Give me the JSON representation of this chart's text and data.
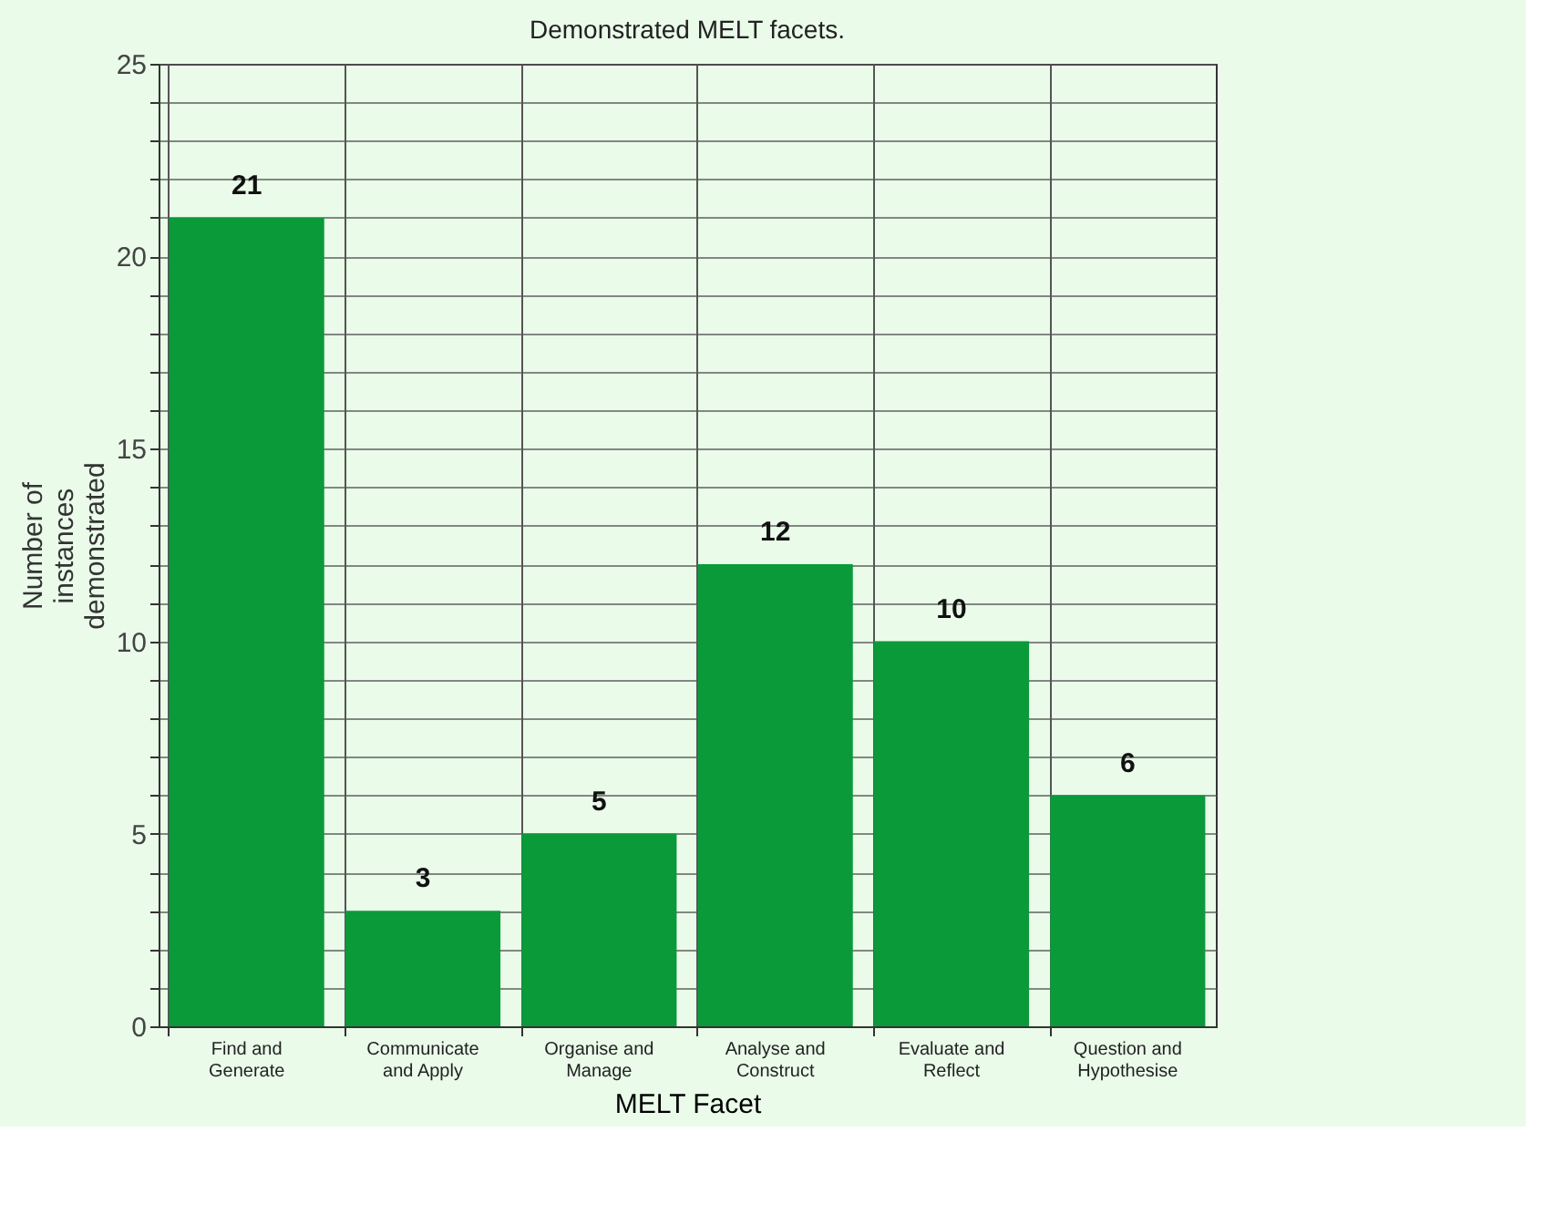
{
  "chart_data": {
    "type": "bar",
    "title": "Demonstrated MELT facets.",
    "xlabel": "MELT Facet",
    "ylabel": "Number of instances demonstrated",
    "categories": [
      "Find and Generate",
      "Communicate and Apply",
      "Organise and Manage",
      "Analyse and Construct",
      "Evaluate and Reflect",
      "Question and Hypothesise"
    ],
    "values": [
      21,
      3,
      5,
      12,
      10,
      6
    ],
    "color": "#0a9a3a",
    "data_labels": true,
    "ylim": [
      0,
      25
    ],
    "yticks": [
      0,
      {
        "value": 1,
        "label": null
      },
      {
        "value": 2,
        "label": null
      },
      {
        "value": 3,
        "label": null
      },
      {
        "value": 4,
        "label": null
      },
      5,
      {
        "value": 6,
        "label": null
      },
      {
        "value": 7,
        "label": null
      },
      {
        "value": 8,
        "label": null
      },
      {
        "value": 9,
        "label": null
      },
      10,
      {
        "value": 11,
        "label": null
      },
      {
        "value": 12,
        "label": null
      },
      {
        "value": 13,
        "label": null
      },
      {
        "value": 14,
        "label": null
      },
      15,
      {
        "value": 16,
        "label": null
      },
      {
        "value": 17,
        "label": null
      },
      {
        "value": 18,
        "label": null
      },
      {
        "value": 19,
        "label": null
      },
      20,
      {
        "value": 21,
        "label": null
      },
      {
        "value": 22,
        "label": null
      },
      {
        "value": 23,
        "label": null
      },
      {
        "value": 24,
        "label": null
      },
      25
    ],
    "grid": true
  }
}
